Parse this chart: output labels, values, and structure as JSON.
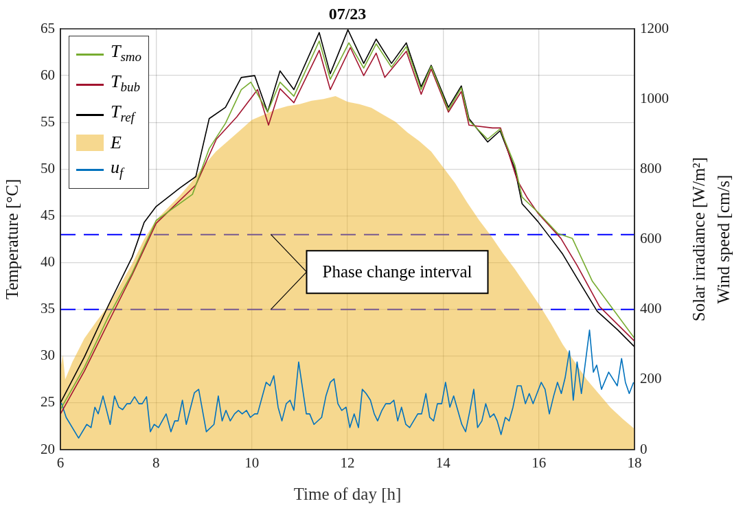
{
  "chart_data": {
    "type": "line",
    "title": "07/23",
    "xlabel": "Time of day [h]",
    "ylabel": "Temperature [°C]",
    "y2label": "Solar irradiance [W/m²]\nWind speed [cm/s]",
    "xlim": [
      6,
      18
    ],
    "xticks": [
      6,
      8,
      10,
      12,
      14,
      16,
      18
    ],
    "ylim": [
      20,
      65
    ],
    "yticks": [
      20,
      25,
      30,
      35,
      40,
      45,
      50,
      55,
      60,
      65
    ],
    "y2lim": [
      0,
      1200
    ],
    "y2ticks": [
      0,
      200,
      400,
      600,
      800,
      1000,
      1200
    ],
    "grid": true,
    "legend": "top left",
    "ref_lines": [
      {
        "axis": "y",
        "value": 43,
        "color": "#0000ff",
        "line_style": "dashed"
      },
      {
        "axis": "y",
        "value": 35,
        "color": "#0000ff",
        "line_style": "dashed"
      }
    ],
    "annotations": [
      {
        "text": "Phase change interval",
        "x": 10.4,
        "y": 43
      }
    ],
    "series": [
      {
        "name": "T$_{smo}$",
        "type": "line",
        "color": "#77ac30",
        "x": [
          6,
          6.5,
          7,
          7.5,
          8,
          8.76,
          9.11,
          9.45,
          9.78,
          9.98,
          10.33,
          10.59,
          10.88,
          11.41,
          11.64,
          12.03,
          12.34,
          12.6,
          12.92,
          13.23,
          13.54,
          13.75,
          14.11,
          14.38,
          14.54,
          14.93,
          15.19,
          15.5,
          15.65,
          15.98,
          16.4,
          16.7,
          17.12,
          17.51,
          18
        ],
        "values": [
          24.3,
          28.8,
          34.2,
          38.9,
          44.5,
          47.3,
          52.2,
          54.9,
          58.5,
          59.3,
          56.1,
          59.3,
          57.8,
          63.7,
          59.6,
          63.5,
          60.8,
          63.4,
          60.9,
          63.1,
          58.5,
          61.0,
          56.3,
          58.7,
          55.2,
          53.2,
          54.3,
          50.4,
          47.0,
          45.4,
          43.1,
          42.6,
          38.0,
          35.3,
          31.9
        ]
      },
      {
        "name": "T$_{bub}$",
        "type": "line",
        "color": "#a2142f",
        "x": [
          6,
          6.5,
          7,
          7.5,
          8,
          8.83,
          9.26,
          9.69,
          10.12,
          10.35,
          10.59,
          10.88,
          11.41,
          11.64,
          12.06,
          12.34,
          12.6,
          12.78,
          13.23,
          13.54,
          13.75,
          14.11,
          14.38,
          14.54,
          15.03,
          15.2,
          15.55,
          15.75,
          15.98,
          16.46,
          16.8,
          17.27,
          18
        ],
        "values": [
          23.8,
          28.4,
          33.6,
          38.7,
          44.2,
          48.3,
          53.2,
          55.6,
          58.5,
          54.7,
          58.6,
          57.1,
          62.7,
          58.5,
          63.0,
          60.0,
          62.4,
          59.8,
          62.6,
          58.0,
          60.7,
          56.1,
          58.3,
          54.7,
          54.4,
          54.4,
          48.8,
          47.0,
          45.3,
          42.6,
          39.7,
          35.3,
          31.6
        ]
      },
      {
        "name": "T$_{ref}$",
        "type": "line",
        "color": "#000000",
        "x": [
          6,
          6.5,
          7,
          7.5,
          7.75,
          8,
          8.5,
          8.83,
          9.11,
          9.45,
          9.78,
          10.06,
          10.33,
          10.59,
          10.88,
          11.41,
          11.64,
          12.01,
          12.34,
          12.6,
          12.92,
          13.23,
          13.54,
          13.75,
          14.11,
          14.38,
          14.54,
          14.93,
          15.19,
          15.5,
          15.65,
          15.98,
          16.25,
          16.5,
          16.84,
          17.22,
          17.65,
          18
        ],
        "values": [
          25.0,
          29.9,
          35.4,
          40.6,
          44.3,
          46.0,
          48.0,
          49.2,
          55.4,
          56.6,
          59.8,
          60.0,
          56.1,
          60.5,
          58.5,
          64.6,
          60.2,
          64.9,
          61.3,
          63.9,
          61.3,
          63.5,
          58.8,
          61.1,
          56.6,
          58.9,
          55.4,
          52.9,
          54.1,
          50.0,
          46.3,
          44.4,
          42.6,
          40.9,
          38.0,
          34.8,
          32.8,
          31.0
        ]
      },
      {
        "name": "E",
        "type": "area",
        "axis": "y2",
        "color": "#edb120",
        "x": [
          6,
          6.05,
          6.1,
          6.25,
          6.5,
          6.75,
          7,
          7.25,
          7.5,
          7.75,
          8,
          8.25,
          8.5,
          8.75,
          9,
          9.25,
          9.5,
          9.75,
          10,
          10.25,
          10.5,
          10.75,
          11,
          11.25,
          11.5,
          11.75,
          12,
          12.25,
          12.5,
          12.75,
          13,
          13.25,
          13.5,
          13.75,
          14,
          14.25,
          14.5,
          14.75,
          15,
          15.25,
          15.5,
          15.75,
          16,
          16.25,
          16.5,
          16.75,
          17,
          17.25,
          17.5,
          17.75,
          18
        ],
        "values": [
          230,
          270,
          200,
          250,
          317,
          365,
          410,
          470,
          530,
          600,
          655,
          690,
          725,
          765,
          810,
          850,
          880,
          910,
          940,
          955,
          970,
          980,
          985,
          995,
          1000,
          1008,
          992,
          985,
          975,
          955,
          935,
          905,
          880,
          850,
          805,
          760,
          705,
          655,
          610,
          560,
          515,
          465,
          415,
          360,
          300,
          250,
          200,
          160,
          120,
          88,
          59
        ]
      },
      {
        "name": "u$_{f}$",
        "type": "line",
        "axis": "y2",
        "color": "#0072bd",
        "x": [
          6.02,
          6.12,
          6.38,
          6.55,
          6.64,
          6.72,
          6.79,
          6.89,
          7.04,
          7.13,
          7.22,
          7.3,
          7.39,
          7.46,
          7.55,
          7.64,
          7.71,
          7.8,
          7.88,
          7.96,
          8.05,
          8.21,
          8.31,
          8.39,
          8.46,
          8.55,
          8.63,
          8.8,
          8.89,
          9.05,
          9.21,
          9.3,
          9.38,
          9.46,
          9.55,
          9.64,
          9.72,
          9.8,
          9.89,
          9.97,
          10.06,
          10.12,
          10.3,
          10.38,
          10.46,
          10.55,
          10.63,
          10.72,
          10.8,
          10.88,
          10.98,
          11.14,
          11.21,
          11.3,
          11.46,
          11.55,
          11.64,
          11.72,
          11.8,
          11.88,
          11.97,
          12.05,
          12.14,
          12.23,
          12.31,
          12.39,
          12.48,
          12.56,
          12.63,
          12.72,
          12.8,
          12.89,
          12.97,
          13.05,
          13.13,
          13.22,
          13.3,
          13.47,
          13.55,
          13.64,
          13.72,
          13.8,
          13.88,
          13.97,
          14.05,
          14.14,
          14.22,
          14.39,
          14.47,
          14.56,
          14.64,
          14.72,
          14.81,
          14.89,
          14.98,
          15.06,
          15.13,
          15.21,
          15.3,
          15.38,
          15.46,
          15.55,
          15.63,
          15.72,
          15.8,
          15.88,
          16.05,
          16.13,
          16.22,
          16.31,
          16.39,
          16.47,
          16.55,
          16.64,
          16.72,
          16.8,
          16.89,
          17.06,
          17.14,
          17.21,
          17.31,
          17.46,
          17.64,
          17.73,
          17.81,
          17.89,
          17.98
        ],
        "values": [
          133,
          92,
          33,
          72,
          63,
          121,
          102,
          153,
          72,
          153,
          121,
          114,
          131,
          131,
          151,
          131,
          131,
          151,
          51,
          72,
          63,
          102,
          51,
          82,
          82,
          141,
          72,
          162,
          172,
          51,
          72,
          153,
          82,
          112,
          82,
          102,
          112,
          102,
          112,
          92,
          102,
          102,
          192,
          182,
          211,
          121,
          82,
          131,
          141,
          112,
          250,
          102,
          102,
          72,
          92,
          153,
          192,
          202,
          131,
          112,
          121,
          63,
          102,
          63,
          172,
          160,
          141,
          102,
          82,
          112,
          131,
          131,
          141,
          82,
          121,
          72,
          63,
          102,
          102,
          160,
          92,
          82,
          131,
          131,
          192,
          121,
          153,
          72,
          51,
          112,
          172,
          63,
          82,
          131,
          92,
          102,
          82,
          43,
          92,
          82,
          121,
          182,
          182,
          131,
          160,
          131,
          192,
          172,
          102,
          153,
          192,
          160,
          205,
          282,
          141,
          250,
          160,
          341,
          221,
          241,
          172,
          221,
          182,
          260,
          192,
          160,
          192
        ]
      }
    ]
  }
}
